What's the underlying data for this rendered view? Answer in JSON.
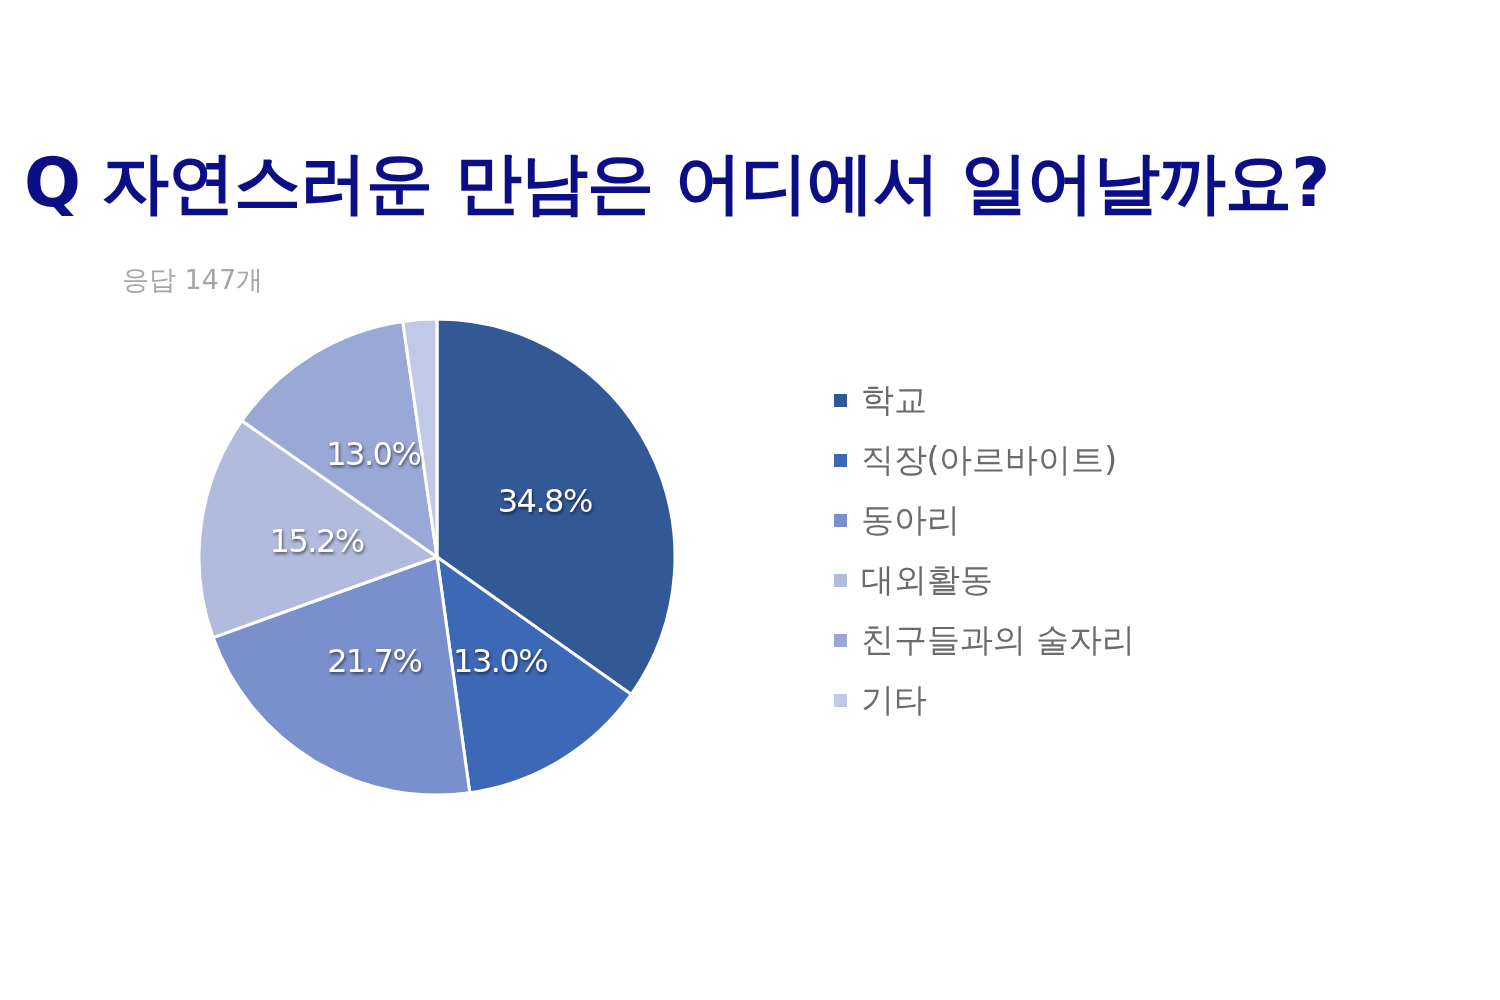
{
  "chart_data": {
    "type": "pie",
    "title": "Q 자연스러운 만남은 어디에서 일어날까요?",
    "subtitle": "응답 147개",
    "categories": [
      "학교",
      "직장(아르바이트)",
      "동아리",
      "대외활동",
      "친구들과의 술자리",
      "기타"
    ],
    "values": [
      34.8,
      13.0,
      21.7,
      15.2,
      13.0,
      2.3
    ],
    "colors": [
      "#325896",
      "#3d68b5",
      "#7a90cc",
      "#b0bbdd",
      "#9aa8d6",
      "#c0c9e7"
    ],
    "value_labels": [
      "34.8%",
      "13.0%",
      "21.7%",
      "15.2%",
      "13.0%",
      null
    ],
    "legend": "right"
  }
}
